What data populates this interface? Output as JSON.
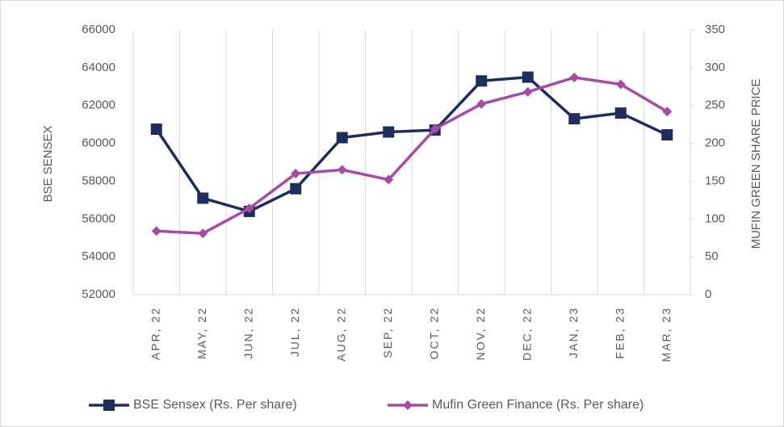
{
  "chart_data": {
    "type": "line",
    "categories": [
      "APR, 22",
      "MAY, 22",
      "JUN, 22",
      "JUL, 22",
      "AUG, 22",
      "SEP, 22",
      "OCT, 22",
      "NOV, 22",
      "DEC, 22",
      "JAN, 23",
      "FEB, 23",
      "MAR, 23"
    ],
    "series": [
      {
        "name": "BSE Sensex (Rs. Per share)",
        "color": "#1f2d5c",
        "values": [
          60750,
          57100,
          56400,
          57600,
          60300,
          60600,
          60700,
          63300,
          63500,
          61300,
          61600,
          60450
        ]
      },
      {
        "name": "Mufin Green Finance (Rs. Per share)",
        "color": "#a64ca6",
        "axis": "y2",
        "values": [
          84,
          81,
          114,
          160,
          165,
          152,
          219,
          252,
          268,
          287,
          278,
          242
        ]
      }
    ],
    "ylabel": "BSE SENSEX",
    "y2label": "MUFIN GREEN SHARE PRICE",
    "ylim": [
      52000,
      66000
    ],
    "yticks": [
      52000,
      54000,
      56000,
      58000,
      60000,
      62000,
      64000,
      66000
    ],
    "y2lim": [
      0,
      350
    ],
    "y2ticks": [
      0,
      50,
      100,
      150,
      200,
      250,
      300,
      350
    ],
    "legend": "bottom"
  }
}
